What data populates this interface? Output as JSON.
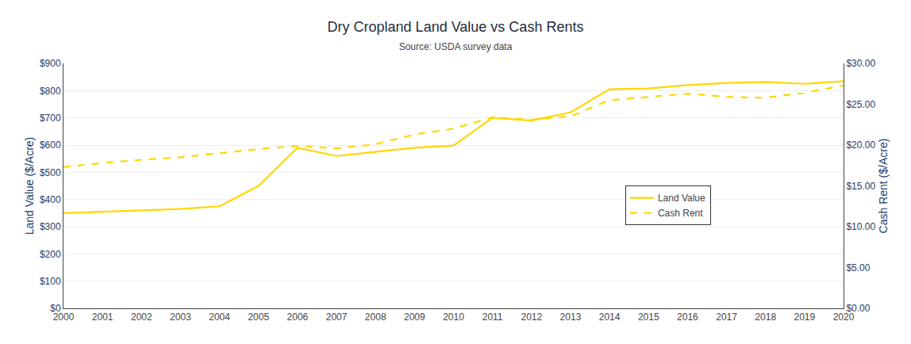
{
  "chart_data": {
    "type": "line",
    "title": "Dry Cropland Land Value vs Cash Rents",
    "subtitle": "Source: USDA survey data",
    "x": [
      2000,
      2001,
      2002,
      2003,
      2004,
      2005,
      2006,
      2007,
      2008,
      2009,
      2010,
      2011,
      2012,
      2013,
      2014,
      2015,
      2016,
      2017,
      2018,
      2019,
      2020
    ],
    "series": [
      {
        "name": "Land Value",
        "color": "#FFD700",
        "line_style": "solid",
        "values": [
          350,
          355,
          358,
          365,
          375,
          450,
          590,
          560,
          575,
          590,
          598,
          700,
          690,
          720,
          805,
          808,
          820,
          828,
          832,
          825,
          835
        ]
      },
      {
        "name": "Cash Rent",
        "color": "#FFD700",
        "line_style": "dashed",
        "axis": "y2",
        "values": [
          17.3,
          17.8,
          18.2,
          18.5,
          19.0,
          19.5,
          19.9,
          19.6,
          20.1,
          21.3,
          22.0,
          23.4,
          23.1,
          23.5,
          25.5,
          25.9,
          26.3,
          25.9,
          25.8,
          26.4,
          27.3
        ]
      }
    ],
    "ylabel": "Land Value ($/Acre)",
    "y2label": "Cash Rent ($/Acre)",
    "xlim": [
      2000,
      2020
    ],
    "xticks": [
      2000,
      2001,
      2002,
      2003,
      2004,
      2005,
      2006,
      2007,
      2008,
      2009,
      2010,
      2011,
      2012,
      2013,
      2014,
      2015,
      2016,
      2017,
      2018,
      2019,
      2020
    ],
    "ylim": [
      0,
      900
    ],
    "yticks": [
      {
        "value": 0,
        "label": "$0"
      },
      {
        "value": 100,
        "label": "$100"
      },
      {
        "value": 200,
        "label": "$200"
      },
      {
        "value": 300,
        "label": "$300"
      },
      {
        "value": 400,
        "label": "$400"
      },
      {
        "value": 500,
        "label": "$500"
      },
      {
        "value": 600,
        "label": "$600"
      },
      {
        "value": 700,
        "label": "$700"
      },
      {
        "value": 800,
        "label": "$800"
      },
      {
        "value": 900,
        "label": "$900"
      }
    ],
    "y2lim": [
      0,
      30
    ],
    "y2ticks": [
      {
        "value": 0.0,
        "label": "$0.00"
      },
      {
        "value": 5.0,
        "label": "$5.00"
      },
      {
        "value": 10.0,
        "label": "$10.00"
      },
      {
        "value": 15.0,
        "label": "$15.00"
      },
      {
        "value": 20.0,
        "label": "$20.00"
      },
      {
        "value": 25.0,
        "label": "$25.00"
      },
      {
        "value": 30.0,
        "label": "$30.00"
      }
    ],
    "grid": true,
    "legend": "right"
  }
}
